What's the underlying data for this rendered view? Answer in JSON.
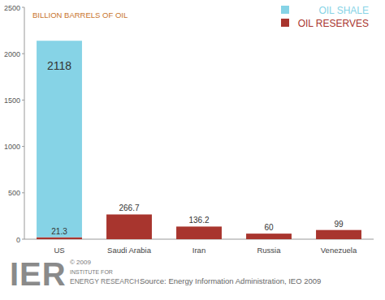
{
  "chart_data": {
    "type": "bar",
    "title": "BILLION BARRELS OF OIL",
    "categories": [
      "US",
      "Saudi Arabia",
      "Iran",
      "Russia",
      "Venezuela"
    ],
    "series": [
      {
        "name": "OIL RESERVES",
        "color": "#a8352e",
        "values": [
          21.3,
          266.7,
          136.2,
          60,
          99
        ]
      },
      {
        "name": "OIL SHALE",
        "color": "#86d3e6",
        "values": [
          2118,
          null,
          null,
          null,
          null
        ]
      }
    ],
    "stacked": true,
    "data_labels": true,
    "legend": "top-right",
    "grid": false,
    "ylim": [
      0,
      2500
    ],
    "yticks": [
      0,
      500,
      1000,
      1500,
      2000,
      2500
    ]
  },
  "footer": {
    "logo": "IER",
    "copyright": "© 2009",
    "org_line1": "INSTITUTE FOR",
    "org_line2": "ENERGY RESEARCH",
    "source": "Source: Energy Information Administration, IEO 2009"
  }
}
